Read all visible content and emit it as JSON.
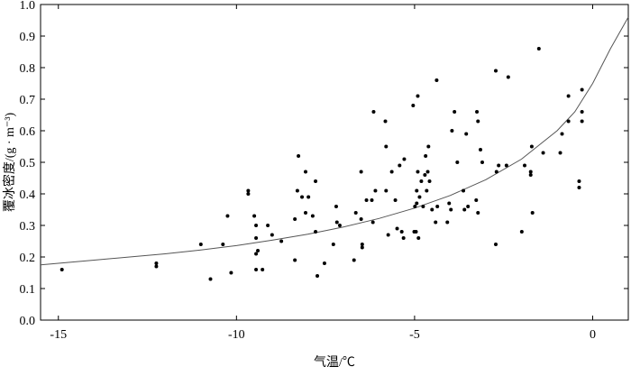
{
  "chart_data": {
    "type": "scatter",
    "x_label": "气温/℃",
    "y_label": "覆冰密度/(g · m⁻³)",
    "xlim": [
      -15.5,
      1
    ],
    "ylim": [
      0,
      1
    ],
    "xticks": [
      -15,
      -10,
      -5,
      0
    ],
    "yticks": [
      {
        "value": 0,
        "label": "0.0"
      },
      0.1,
      0.2,
      0.3,
      0.4,
      0.5,
      0.6,
      0.7,
      0.8,
      0.9,
      {
        "value": 1,
        "label": "1.0"
      }
    ],
    "points": {
      "color": "#000000",
      "x": [
        -14.9,
        -12.25,
        -12.25,
        -11.0,
        -10.73,
        -10.38,
        -10.25,
        -10.15,
        -9.67,
        -9.67,
        -9.5,
        -9.45,
        -9.45,
        -9.45,
        -9.45,
        -9.4,
        -9.27,
        -9.12,
        -9.0,
        -8.74,
        -8.36,
        -8.36,
        -8.29,
        -8.26,
        -8.16,
        -8.06,
        -8.06,
        -7.98,
        -7.86,
        -7.78,
        -7.78,
        -7.73,
        -7.53,
        -7.28,
        -7.2,
        -7.18,
        -7.1,
        -6.7,
        -6.65,
        -6.5,
        -6.5,
        -6.47,
        -6.47,
        -6.35,
        -6.2,
        -6.15,
        -6.1,
        -6.17,
        -5.82,
        -5.8,
        -5.8,
        -5.74,
        -5.64,
        -5.54,
        -5.49,
        -5.42,
        -5.36,
        -5.29,
        -5.31,
        -5.04,
        -5.01,
        -4.99,
        -4.96,
        -4.94,
        -4.94,
        -4.91,
        -4.91,
        -4.89,
        -4.86,
        -4.81,
        -4.76,
        -4.71,
        -4.69,
        -4.66,
        -4.63,
        -4.61,
        -4.58,
        -4.51,
        -4.38,
        -4.36,
        -4.41,
        -4.08,
        -4.03,
        -3.98,
        -3.95,
        -3.88,
        -3.8,
        -3.63,
        -3.6,
        -3.55,
        -3.5,
        -3.27,
        -3.25,
        -3.22,
        -3.22,
        -3.15,
        -3.1,
        -2.72,
        -2.72,
        -2.7,
        -2.64,
        -2.42,
        -2.37,
        -1.99,
        -1.91,
        -1.74,
        -1.74,
        -1.71,
        -1.69,
        -1.51,
        -1.39,
        -0.91,
        -0.86,
        -0.68,
        -0.68,
        -0.38,
        -0.38,
        -0.3,
        -0.3,
        -0.3
      ],
      "y": [
        0.16,
        0.18,
        0.17,
        0.24,
        0.13,
        0.24,
        0.33,
        0.15,
        0.41,
        0.4,
        0.33,
        0.26,
        0.3,
        0.21,
        0.16,
        0.22,
        0.16,
        0.3,
        0.27,
        0.25,
        0.19,
        0.32,
        0.41,
        0.52,
        0.39,
        0.47,
        0.34,
        0.39,
        0.33,
        0.44,
        0.28,
        0.14,
        0.18,
        0.24,
        0.36,
        0.31,
        0.3,
        0.19,
        0.34,
        0.47,
        0.32,
        0.24,
        0.23,
        0.38,
        0.38,
        0.66,
        0.41,
        0.31,
        0.63,
        0.55,
        0.41,
        0.27,
        0.47,
        0.38,
        0.29,
        0.49,
        0.28,
        0.51,
        0.26,
        0.68,
        0.28,
        0.36,
        0.28,
        0.41,
        0.37,
        0.71,
        0.47,
        0.26,
        0.39,
        0.44,
        0.36,
        0.46,
        0.52,
        0.41,
        0.47,
        0.55,
        0.44,
        0.35,
        0.76,
        0.36,
        0.31,
        0.31,
        0.37,
        0.35,
        0.6,
        0.66,
        0.5,
        0.41,
        0.35,
        0.59,
        0.36,
        0.38,
        0.66,
        0.63,
        0.34,
        0.54,
        0.5,
        0.79,
        0.24,
        0.47,
        0.49,
        0.49,
        0.77,
        0.28,
        0.49,
        0.47,
        0.46,
        0.55,
        0.34,
        0.86,
        0.53,
        0.53,
        0.59,
        0.63,
        0.71,
        0.42,
        0.44,
        0.73,
        0.66,
        0.63
      ]
    },
    "curve": {
      "color": "#555555",
      "x": [
        -15.5,
        -15,
        -14,
        -13,
        -12,
        -11,
        -10,
        -9,
        -8,
        -7,
        -6,
        -5,
        -4,
        -3,
        -2,
        -1,
        -0.5,
        0,
        0.5,
        1
      ],
      "y": [
        0.175,
        0.18,
        0.19,
        0.2,
        0.21,
        0.222,
        0.236,
        0.253,
        0.272,
        0.295,
        0.322,
        0.355,
        0.395,
        0.445,
        0.51,
        0.6,
        0.66,
        0.75,
        0.86,
        0.96
      ]
    }
  }
}
